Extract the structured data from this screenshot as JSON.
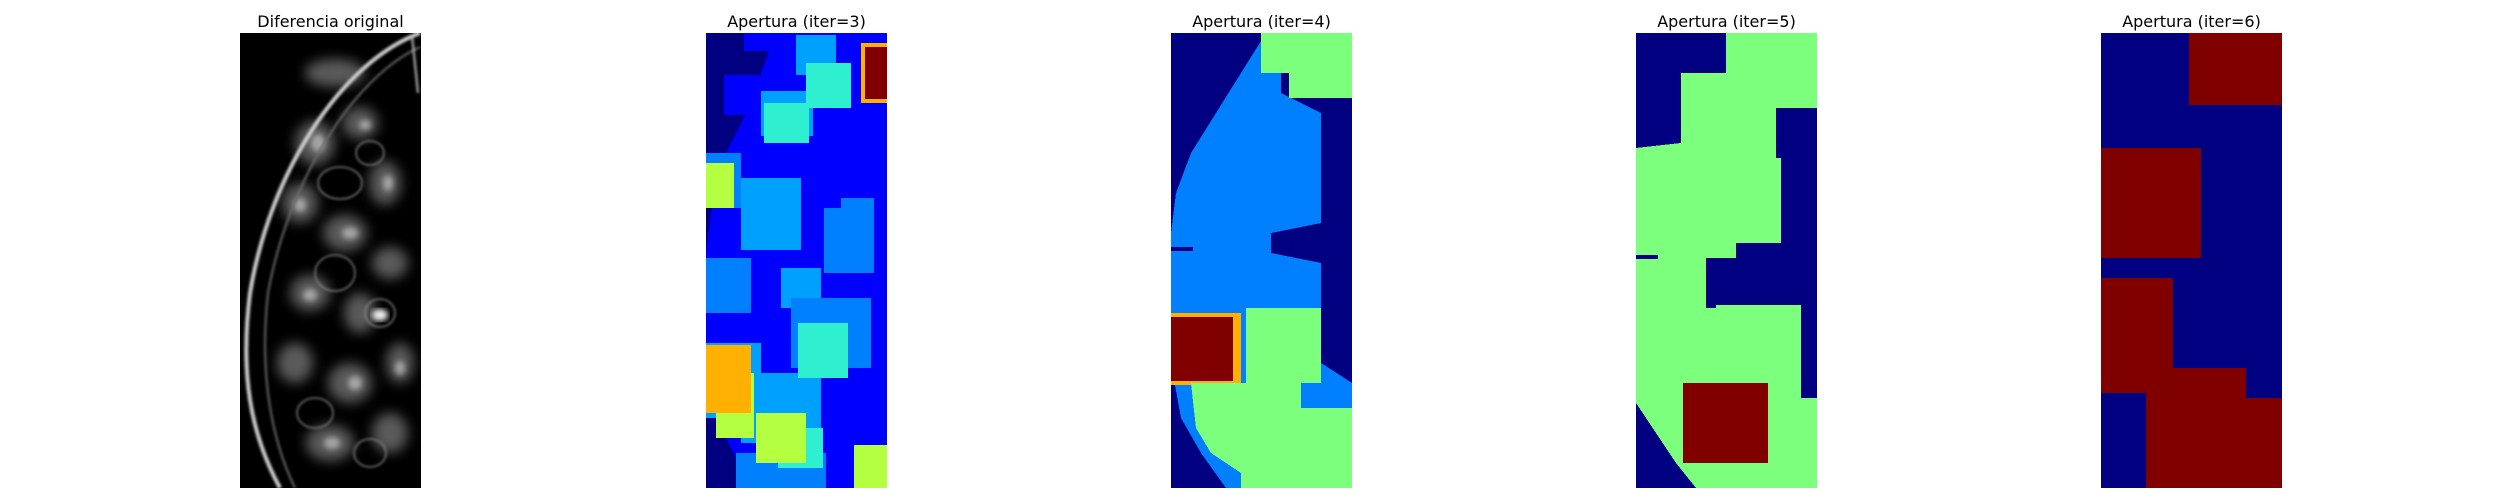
{
  "figure": {
    "panels": [
      {
        "id": "p0",
        "title": "Diferencia original",
        "colormap": "gray"
      },
      {
        "id": "p1",
        "title": "Apertura (iter=3)",
        "colormap": "jet"
      },
      {
        "id": "p2",
        "title": "Apertura (iter=4)",
        "colormap": "jet"
      },
      {
        "id": "p3",
        "title": "Apertura (iter=5)",
        "colormap": "jet"
      },
      {
        "id": "p4",
        "title": "Apertura (iter=6)",
        "colormap": "jet"
      }
    ]
  },
  "colors": {
    "background": "#ffffff",
    "jet_navy": "#000080",
    "jet_blue": "#0000ff",
    "jet_mid_blue": "#0080ff",
    "jet_sky": "#00a0ff",
    "jet_cyan": "#2ef0d0",
    "jet_green": "#7cff7c",
    "jet_yellow_green": "#b4ff40",
    "jet_orange": "#ffb000",
    "jet_dark_red": "#800000"
  }
}
